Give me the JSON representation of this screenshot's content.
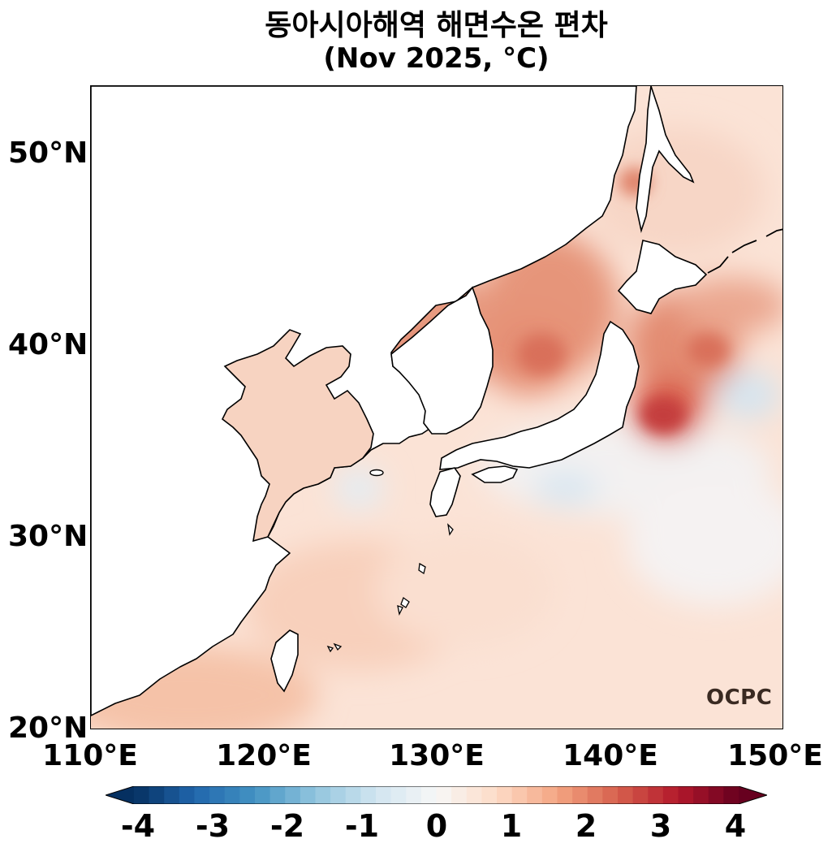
{
  "title": {
    "line1": "동아시아해역 해면수온 편차",
    "line2": "(Nov 2025, °C)"
  },
  "map": {
    "lat_ticks": [
      "50°N",
      "40°N",
      "30°N",
      "20°N"
    ],
    "lon_ticks": [
      "110°E",
      "120°E",
      "130°E",
      "140°E",
      "150°E"
    ],
    "extent": {
      "lon": [
        110,
        150
      ],
      "lat": [
        20,
        53.5
      ]
    }
  },
  "colorbar": {
    "labels": [
      "-4",
      "-3",
      "-2",
      "-1",
      "0",
      "1",
      "2",
      "3",
      "4"
    ],
    "range": [
      -4,
      4
    ],
    "extend": "both",
    "colormap": "RdBu_r"
  },
  "watermark": {
    "text": "OCPC"
  },
  "colors": {
    "warm": "#e07a5f",
    "cool": "#a8cfe6",
    "land": "#ffffff",
    "coast": "#000000"
  }
}
